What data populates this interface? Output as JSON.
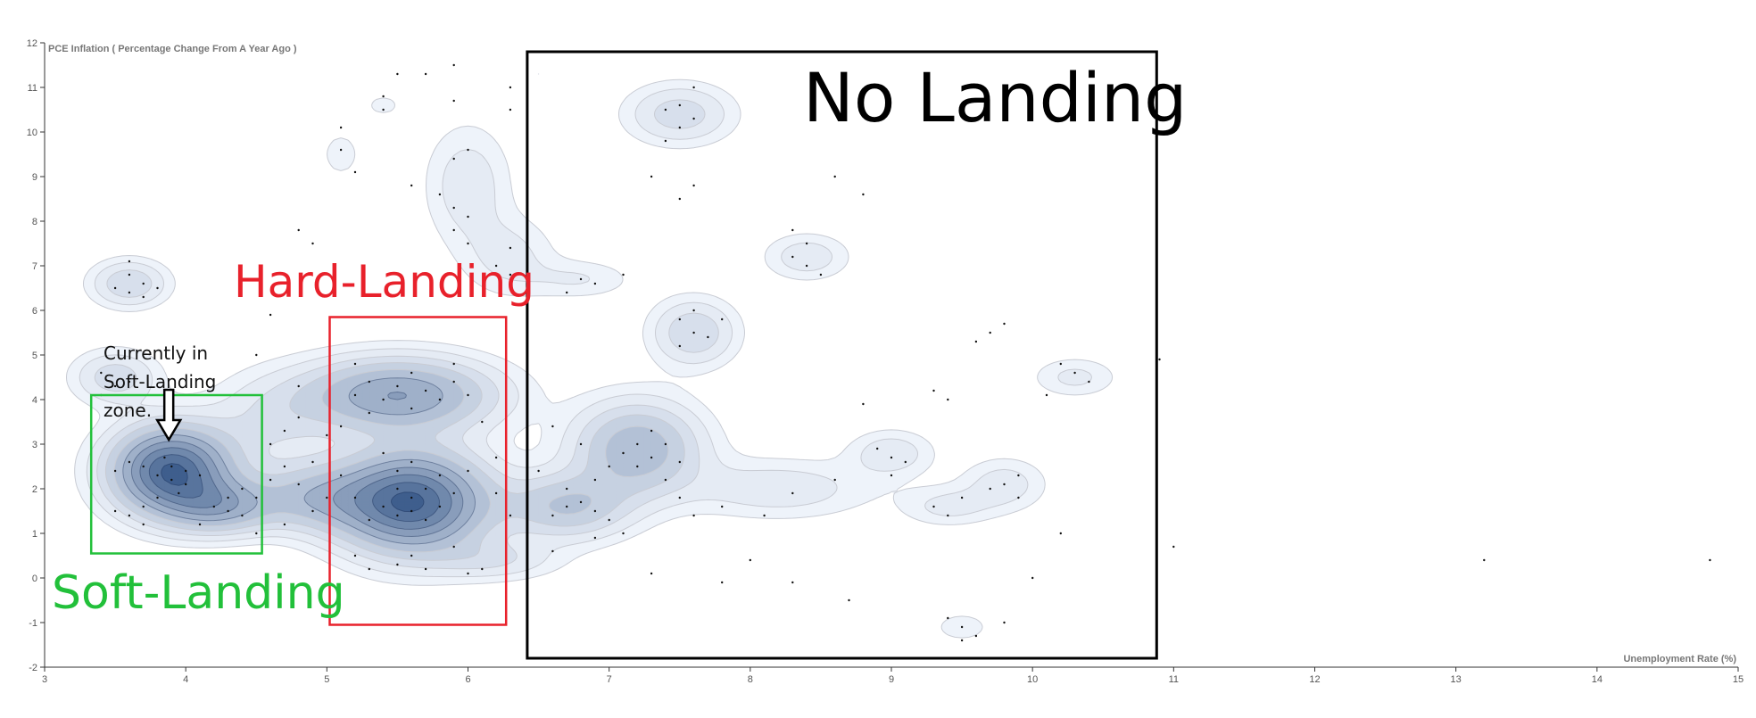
{
  "chart_data": {
    "type": "scatter",
    "subtype": "density-contour",
    "xlabel": "Unemployment Rate (%)",
    "ylabel": "PCE Inflation ( Percentage Change From A Year Ago )",
    "xlim": [
      3,
      15
    ],
    "ylim": [
      -2,
      12
    ],
    "x_ticks": [
      3,
      4,
      5,
      6,
      7,
      8,
      9,
      10,
      11,
      12,
      13,
      14,
      15
    ],
    "y_ticks": [
      -2,
      -1,
      0,
      1,
      2,
      3,
      4,
      5,
      6,
      7,
      8,
      9,
      10,
      11,
      12
    ],
    "grid": false,
    "colors": {
      "density_low": "#eef3fa",
      "density_high": "#08306b",
      "contour_line": "#c9ccd4",
      "point": "#111111"
    },
    "clusters": [
      {
        "x": 3.9,
        "y": 2.4,
        "sx": 0.28,
        "sy": 0.65,
        "w": 1.0
      },
      {
        "x": 4.25,
        "y": 1.6,
        "sx": 0.25,
        "sy": 0.4,
        "w": 0.45
      },
      {
        "x": 5.6,
        "y": 1.7,
        "sx": 0.35,
        "sy": 0.75,
        "w": 1.0
      },
      {
        "x": 5.5,
        "y": 4.1,
        "sx": 0.45,
        "sy": 0.55,
        "w": 0.6
      },
      {
        "x": 4.9,
        "y": 1.8,
        "sx": 0.3,
        "sy": 0.5,
        "w": 0.35
      },
      {
        "x": 3.6,
        "y": 6.6,
        "sx": 0.18,
        "sy": 0.35,
        "w": 0.25
      },
      {
        "x": 3.5,
        "y": 4.5,
        "sx": 0.2,
        "sy": 0.4,
        "w": 0.22
      },
      {
        "x": 7.2,
        "y": 2.9,
        "sx": 0.3,
        "sy": 0.7,
        "w": 0.45
      },
      {
        "x": 6.7,
        "y": 1.6,
        "sx": 0.3,
        "sy": 0.5,
        "w": 0.35
      },
      {
        "x": 7.6,
        "y": 5.5,
        "sx": 0.2,
        "sy": 0.5,
        "w": 0.25
      },
      {
        "x": 7.5,
        "y": 10.4,
        "sx": 0.25,
        "sy": 0.45,
        "w": 0.22
      },
      {
        "x": 6.0,
        "y": 8.8,
        "sx": 0.2,
        "sy": 0.9,
        "w": 0.15
      },
      {
        "x": 6.3,
        "y": 7.2,
        "sx": 0.22,
        "sy": 0.6,
        "w": 0.12
      },
      {
        "x": 8.4,
        "y": 7.2,
        "sx": 0.2,
        "sy": 0.35,
        "w": 0.15
      },
      {
        "x": 9.0,
        "y": 2.8,
        "sx": 0.2,
        "sy": 0.35,
        "w": 0.15
      },
      {
        "x": 9.4,
        "y": 1.6,
        "sx": 0.22,
        "sy": 0.3,
        "w": 0.12
      },
      {
        "x": 9.8,
        "y": 2.1,
        "sx": 0.2,
        "sy": 0.4,
        "w": 0.14
      },
      {
        "x": 10.3,
        "y": 4.5,
        "sx": 0.2,
        "sy": 0.3,
        "w": 0.12
      },
      {
        "x": 6.8,
        "y": 6.7,
        "sx": 0.25,
        "sy": 0.3,
        "w": 0.1
      },
      {
        "x": 8.2,
        "y": 2.0,
        "sx": 0.45,
        "sy": 0.45,
        "w": 0.15
      },
      {
        "x": 9.5,
        "y": -1.1,
        "sx": 0.15,
        "sy": 0.25,
        "w": 0.08
      },
      {
        "x": 5.4,
        "y": 10.6,
        "sx": 0.1,
        "sy": 0.2,
        "w": 0.07
      },
      {
        "x": 5.1,
        "y": 9.5,
        "sx": 0.12,
        "sy": 0.45,
        "w": 0.07
      },
      {
        "x": 4.6,
        "y": 3.5,
        "sx": 0.3,
        "sy": 0.7,
        "w": 0.15
      },
      {
        "x": 6.2,
        "y": 0.4,
        "sx": 0.3,
        "sy": 0.3,
        "w": 0.15
      },
      {
        "x": 9.4,
        "y": 4.2,
        "sx": 0.07,
        "sy": 0.18,
        "w": 0.04
      },
      {
        "x": 9.7,
        "y": 5.7,
        "sx": 0.15,
        "sy": 0.15,
        "w": 0.04
      },
      {
        "x": 6.5,
        "y": 11.3,
        "sx": 0.1,
        "sy": 0.2,
        "w": 0.05
      },
      {
        "x": 8.75,
        "y": 8.6,
        "sx": 0.06,
        "sy": 0.12,
        "w": 0.03
      }
    ],
    "points": [
      [
        3.5,
        2.4
      ],
      [
        3.6,
        2.6
      ],
      [
        3.7,
        2.5
      ],
      [
        3.8,
        2.3
      ],
      [
        3.9,
        2.5
      ],
      [
        3.9,
        2.2
      ],
      [
        4.0,
        2.4
      ],
      [
        4.0,
        2.1
      ],
      [
        3.85,
        2.7
      ],
      [
        3.95,
        1.9
      ],
      [
        4.1,
        2.3
      ],
      [
        3.8,
        1.8
      ],
      [
        3.7,
        1.6
      ],
      [
        4.2,
        1.6
      ],
      [
        4.3,
        1.5
      ],
      [
        4.4,
        1.4
      ],
      [
        4.3,
        1.8
      ],
      [
        4.4,
        2.0
      ],
      [
        3.6,
        1.4
      ],
      [
        3.5,
        1.5
      ],
      [
        3.7,
        1.2
      ],
      [
        4.1,
        1.2
      ],
      [
        4.5,
        1.0
      ],
      [
        4.5,
        1.8
      ],
      [
        3.5,
        6.5
      ],
      [
        3.6,
        6.8
      ],
      [
        3.6,
        6.4
      ],
      [
        3.7,
        6.6
      ],
      [
        3.6,
        7.1
      ],
      [
        3.7,
        6.3
      ],
      [
        3.8,
        6.5
      ],
      [
        3.4,
        4.6
      ],
      [
        3.5,
        4.3
      ],
      [
        3.4,
        4.1
      ],
      [
        3.6,
        4.4
      ],
      [
        4.6,
        3.0
      ],
      [
        4.7,
        3.3
      ],
      [
        4.7,
        2.5
      ],
      [
        4.8,
        2.1
      ],
      [
        4.8,
        3.6
      ],
      [
        4.9,
        1.5
      ],
      [
        4.9,
        2.6
      ],
      [
        5.0,
        1.8
      ],
      [
        5.0,
        3.2
      ],
      [
        4.6,
        2.2
      ],
      [
        4.7,
        1.2
      ],
      [
        4.8,
        4.3
      ],
      [
        4.5,
        5.0
      ],
      [
        4.8,
        7.8
      ],
      [
        4.9,
        7.5
      ],
      [
        4.6,
        5.9
      ],
      [
        5.3,
        1.3
      ],
      [
        5.4,
        1.6
      ],
      [
        5.5,
        1.4
      ],
      [
        5.5,
        2.0
      ],
      [
        5.6,
        1.5
      ],
      [
        5.6,
        1.8
      ],
      [
        5.7,
        1.3
      ],
      [
        5.7,
        2.0
      ],
      [
        5.8,
        1.6
      ],
      [
        5.8,
        2.3
      ],
      [
        5.5,
        2.4
      ],
      [
        5.4,
        2.8
      ],
      [
        5.6,
        2.6
      ],
      [
        5.9,
        1.9
      ],
      [
        6.0,
        2.4
      ],
      [
        5.2,
        0.5
      ],
      [
        5.3,
        0.2
      ],
      [
        5.5,
        0.3
      ],
      [
        5.6,
        0.5
      ],
      [
        5.7,
        0.2
      ],
      [
        6.0,
        0.1
      ],
      [
        6.1,
        0.2
      ],
      [
        5.9,
        0.7
      ],
      [
        5.2,
        1.8
      ],
      [
        5.1,
        2.3
      ],
      [
        5.2,
        4.1
      ],
      [
        5.3,
        4.4
      ],
      [
        5.4,
        4.0
      ],
      [
        5.5,
        4.3
      ],
      [
        5.6,
        3.8
      ],
      [
        5.6,
        4.6
      ],
      [
        5.7,
        4.2
      ],
      [
        5.8,
        4.0
      ],
      [
        5.9,
        4.4
      ],
      [
        6.0,
        4.1
      ],
      [
        5.3,
        3.7
      ],
      [
        5.1,
        3.4
      ],
      [
        5.2,
        4.8
      ],
      [
        5.9,
        4.8
      ],
      [
        6.1,
        3.5
      ],
      [
        6.2,
        2.7
      ],
      [
        6.2,
        1.9
      ],
      [
        6.3,
        1.4
      ],
      [
        5.8,
        8.6
      ],
      [
        5.9,
        8.3
      ],
      [
        6.0,
        8.1
      ],
      [
        5.9,
        9.4
      ],
      [
        6.0,
        9.6
      ],
      [
        5.9,
        7.8
      ],
      [
        6.0,
        7.5
      ],
      [
        6.2,
        7.0
      ],
      [
        6.3,
        6.8
      ],
      [
        6.3,
        7.4
      ],
      [
        5.9,
        10.7
      ],
      [
        5.6,
        8.8
      ],
      [
        5.9,
        11.5
      ],
      [
        5.1,
        9.6
      ],
      [
        5.2,
        9.1
      ],
      [
        5.1,
        10.1
      ],
      [
        5.4,
        10.8
      ],
      [
        5.4,
        10.5
      ],
      [
        5.5,
        11.3
      ],
      [
        5.7,
        11.3
      ],
      [
        6.3,
        11.0
      ],
      [
        6.3,
        10.5
      ],
      [
        6.6,
        1.4
      ],
      [
        6.7,
        1.6
      ],
      [
        6.7,
        2.0
      ],
      [
        6.8,
        1.7
      ],
      [
        6.9,
        1.5
      ],
      [
        6.9,
        2.2
      ],
      [
        7.0,
        1.3
      ],
      [
        7.0,
        2.5
      ],
      [
        7.1,
        2.8
      ],
      [
        7.2,
        3.0
      ],
      [
        7.2,
        2.5
      ],
      [
        7.3,
        3.3
      ],
      [
        7.3,
        2.7
      ],
      [
        7.4,
        3.0
      ],
      [
        7.4,
        2.2
      ],
      [
        7.5,
        2.6
      ],
      [
        7.5,
        1.8
      ],
      [
        6.6,
        3.4
      ],
      [
        6.8,
        3.0
      ],
      [
        6.5,
        2.4
      ],
      [
        6.6,
        0.6
      ],
      [
        6.9,
        0.9
      ],
      [
        7.1,
        1.0
      ],
      [
        7.6,
        1.4
      ],
      [
        7.8,
        1.6
      ],
      [
        6.8,
        6.7
      ],
      [
        6.9,
        6.6
      ],
      [
        6.7,
        6.4
      ],
      [
        7.1,
        6.8
      ],
      [
        7.5,
        5.8
      ],
      [
        7.6,
        5.5
      ],
      [
        7.5,
        5.2
      ],
      [
        7.7,
        5.4
      ],
      [
        7.6,
        6.0
      ],
      [
        7.8,
        5.8
      ],
      [
        7.4,
        10.5
      ],
      [
        7.5,
        10.6
      ],
      [
        7.6,
        10.3
      ],
      [
        7.5,
        10.1
      ],
      [
        7.4,
        9.8
      ],
      [
        7.6,
        8.8
      ],
      [
        7.5,
        8.5
      ],
      [
        7.3,
        9.0
      ],
      [
        7.6,
        11.0
      ],
      [
        8.3,
        7.2
      ],
      [
        8.4,
        7.0
      ],
      [
        8.4,
        7.5
      ],
      [
        8.5,
        6.8
      ],
      [
        8.3,
        7.8
      ],
      [
        8.8,
        8.6
      ],
      [
        8.6,
        9.0
      ],
      [
        8.9,
        2.9
      ],
      [
        9.0,
        2.7
      ],
      [
        9.0,
        2.3
      ],
      [
        9.1,
        2.6
      ],
      [
        9.3,
        1.6
      ],
      [
        9.4,
        1.4
      ],
      [
        9.5,
        1.8
      ],
      [
        9.8,
        2.1
      ],
      [
        9.9,
        2.3
      ],
      [
        9.9,
        1.8
      ],
      [
        9.7,
        2.0
      ],
      [
        10.3,
        4.6
      ],
      [
        10.4,
        4.4
      ],
      [
        10.2,
        4.8
      ],
      [
        10.1,
        4.1
      ],
      [
        9.8,
        5.7
      ],
      [
        9.7,
        5.5
      ],
      [
        9.6,
        5.3
      ],
      [
        9.4,
        -0.9
      ],
      [
        9.5,
        -1.1
      ],
      [
        9.6,
        -1.3
      ],
      [
        9.5,
        -1.4
      ],
      [
        9.8,
        -1.0
      ],
      [
        9.3,
        4.2
      ],
      [
        9.4,
        4.0
      ],
      [
        8.8,
        3.9
      ],
      [
        8.1,
        1.4
      ],
      [
        8.3,
        1.9
      ],
      [
        8.6,
        2.2
      ],
      [
        8.0,
        0.4
      ],
      [
        8.3,
        -0.1
      ],
      [
        8.7,
        -0.5
      ],
      [
        7.3,
        0.1
      ],
      [
        7.8,
        -0.1
      ],
      [
        11.0,
        0.7
      ],
      [
        13.2,
        0.4
      ],
      [
        14.8,
        0.4
      ],
      [
        10.9,
        4.9
      ],
      [
        10.2,
        1.0
      ],
      [
        10.0,
        0.0
      ]
    ],
    "annotations": {
      "no_landing": "No Landing",
      "hard_landing": "Hard-Landing",
      "soft_landing": "Soft-Landing",
      "current_line1": "Currently in",
      "current_line2": "Soft-Landing",
      "current_line3": "zone."
    },
    "regions": [
      {
        "name": "Soft-Landing",
        "x": [
          3.33,
          4.54
        ],
        "y": [
          0.55,
          4.1
        ],
        "color": "#22c03a"
      },
      {
        "name": "Hard-Landing",
        "x": [
          5.02,
          6.27
        ],
        "y": [
          -1.05,
          5.85
        ],
        "color": "#e8212b"
      },
      {
        "name": "No Landing",
        "x": [
          6.42,
          10.88
        ],
        "y": [
          -1.8,
          11.8
        ],
        "color": "#000000"
      }
    ],
    "current_marker": {
      "x": 3.88,
      "y": 3.1
    }
  }
}
